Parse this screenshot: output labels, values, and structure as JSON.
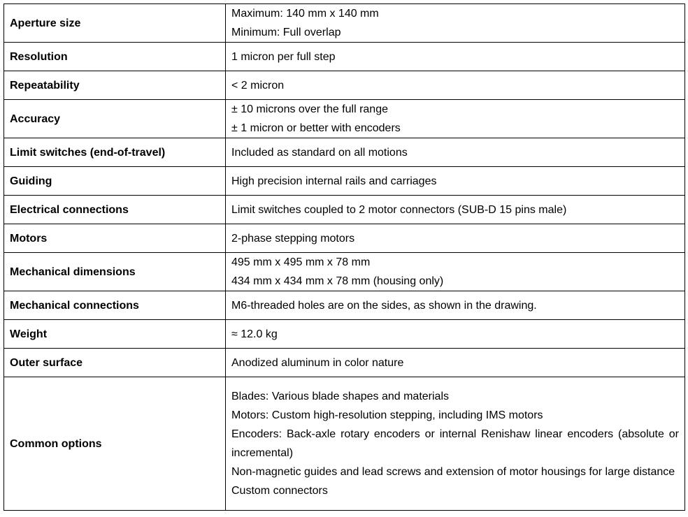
{
  "rows": [
    {
      "label": "Aperture size",
      "lines": [
        "Maximum: 140 mm x 140 mm",
        "Minimum: Full overlap"
      ]
    },
    {
      "label": "Resolution",
      "lines": [
        "1 micron per full step"
      ]
    },
    {
      "label": "Repeatability",
      "lines": [
        "< 2 micron"
      ]
    },
    {
      "label": "Accuracy",
      "lines": [
        "± 10 microns over the full range",
        "± 1 micron or better with encoders"
      ]
    },
    {
      "label": "Limit switches (end-of-travel)",
      "lines": [
        "Included as standard on all motions"
      ]
    },
    {
      "label": "Guiding",
      "lines": [
        "High precision internal rails and carriages"
      ]
    },
    {
      "label": "Electrical connections",
      "lines": [
        "Limit switches coupled to 2 motor connectors (SUB-D 15 pins male)"
      ]
    },
    {
      "label": "Motors",
      "lines": [
        "2-phase stepping motors"
      ]
    },
    {
      "label": "Mechanical dimensions",
      "lines": [
        "495 mm x 495 mm x 78 mm",
        "434 mm x 434 mm x 78 mm (housing only)"
      ]
    },
    {
      "label": "Mechanical connections",
      "lines": [
        "M6-threaded holes are on the sides, as shown in the drawing."
      ]
    },
    {
      "label": "Weight",
      "lines": [
        "≈ 12.0 kg"
      ]
    },
    {
      "label": "Outer surface",
      "lines": [
        "Anodized aluminum in color nature"
      ]
    },
    {
      "label": "Common options",
      "lines": [
        "Blades: Various blade shapes and materials",
        "Motors: Custom high-resolution stepping, including IMS motors",
        "Encoders: Back-axle rotary encoders or internal Renishaw linear encoders (absolute or incremental)",
        "Non-magnetic guides and lead screws and extension of motor housings for large distance",
        "Custom connectors"
      ]
    }
  ]
}
